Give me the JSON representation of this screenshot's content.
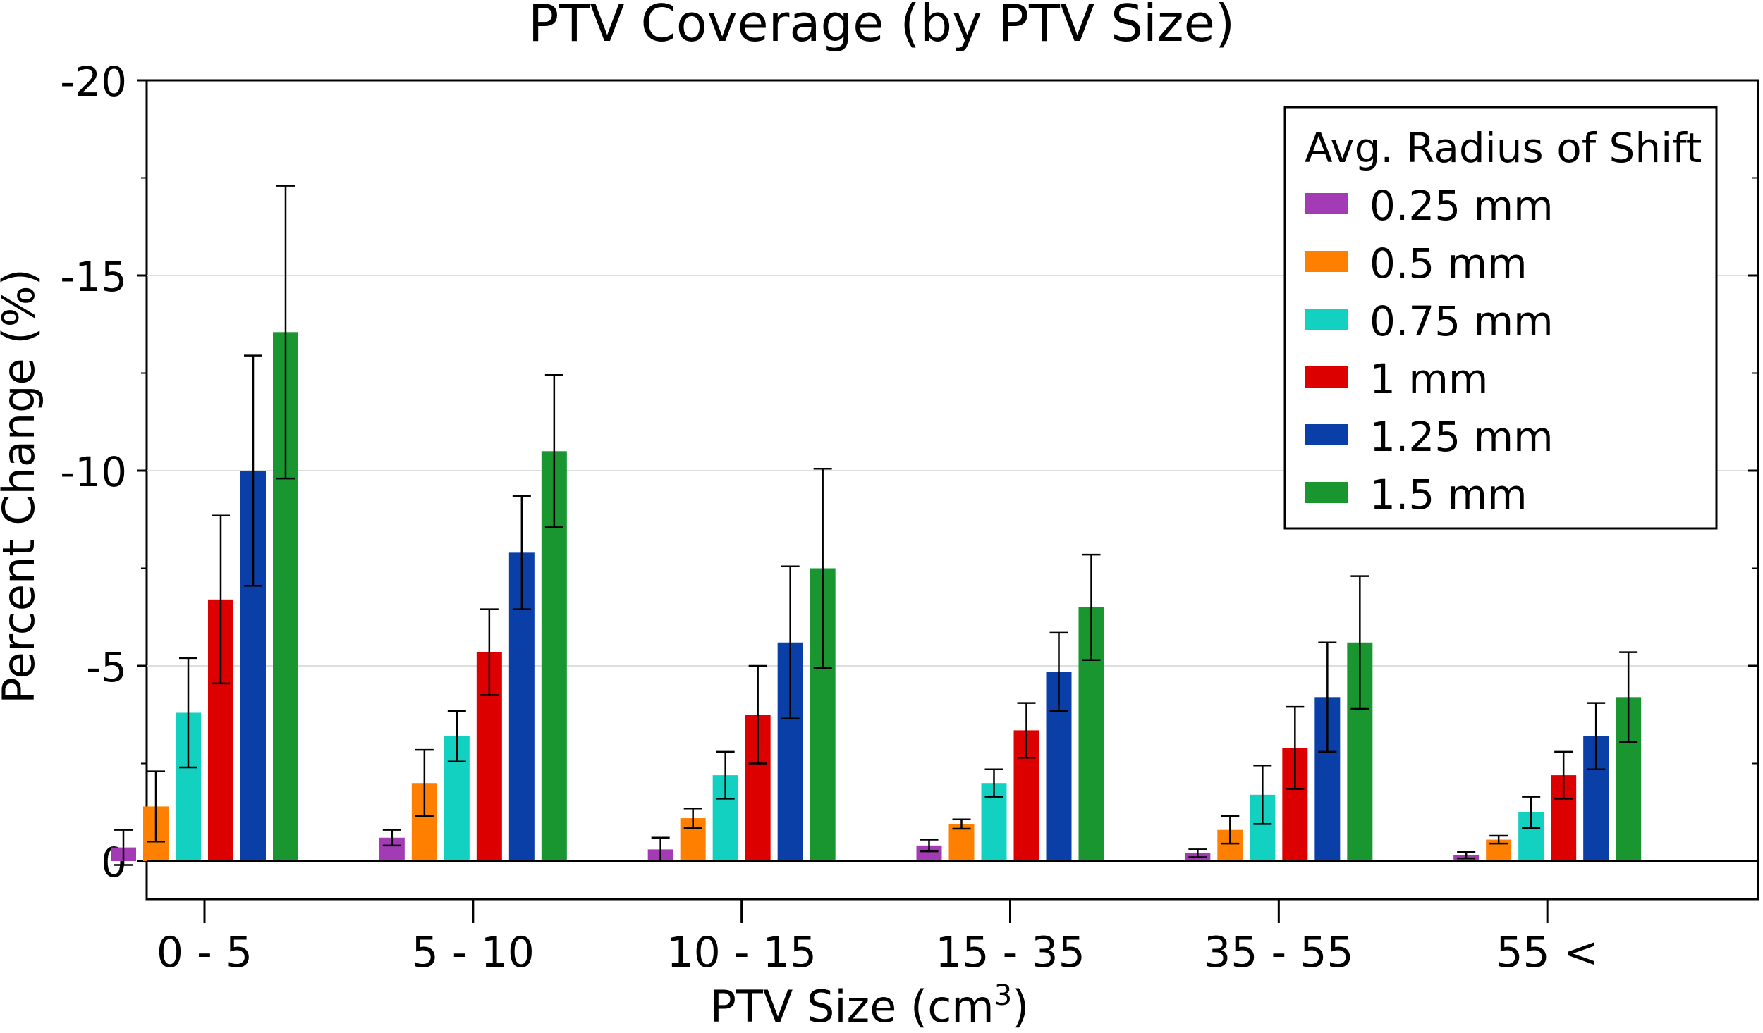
{
  "chart_data": {
    "type": "bar",
    "title": "PTV Coverage (by PTV Size)",
    "xlabel_main": "PTV Size (cm",
    "xlabel_sup": "3",
    "xlabel_close": ")",
    "ylabel": "Percent Change (%)",
    "ylim": [
      0,
      -20
    ],
    "yticks": [
      -20,
      -15,
      -10,
      -5,
      0
    ],
    "ytick_labels": [
      "-20",
      "-15",
      "-10",
      "-5",
      "0"
    ],
    "categories": [
      "0 - 5",
      "5 - 10",
      "10 - 15",
      "15 - 35",
      "35 - 55",
      "55 <"
    ],
    "legend_title": "Avg. Radius of Shift",
    "legend_position": "top-right",
    "grid": "horizontal",
    "series": [
      {
        "name": "0.25 mm",
        "color": "#a33bb5",
        "values": [
          -0.35,
          -0.6,
          -0.3,
          -0.4,
          -0.2,
          -0.15
        ],
        "errors": [
          0.45,
          0.2,
          0.3,
          0.15,
          0.1,
          0.08
        ]
      },
      {
        "name": "0.5 mm",
        "color": "#ff8000",
        "values": [
          -1.4,
          -2.0,
          -1.1,
          -0.95,
          -0.8,
          -0.55
        ],
        "errors": [
          0.9,
          0.85,
          0.25,
          0.12,
          0.35,
          0.1
        ]
      },
      {
        "name": "0.75 mm",
        "color": "#12d1c0",
        "values": [
          -3.8,
          -3.2,
          -2.2,
          -2.0,
          -1.7,
          -1.25
        ],
        "errors": [
          1.4,
          0.65,
          0.6,
          0.35,
          0.75,
          0.4
        ]
      },
      {
        "name": "1 mm",
        "color": "#dd0000",
        "values": [
          -6.7,
          -5.35,
          -3.75,
          -3.35,
          -2.9,
          -2.2
        ],
        "errors": [
          2.15,
          1.1,
          1.25,
          0.7,
          1.05,
          0.6
        ]
      },
      {
        "name": "1.25 mm",
        "color": "#0a3fa8",
        "values": [
          -10.0,
          -7.9,
          -5.6,
          -4.85,
          -4.2,
          -3.2
        ],
        "errors": [
          2.95,
          1.45,
          1.95,
          1.0,
          1.4,
          0.85
        ]
      },
      {
        "name": "1.5 mm",
        "color": "#1a9630",
        "values": [
          -13.55,
          -10.5,
          -7.5,
          -6.5,
          -5.6,
          -4.2
        ],
        "errors": [
          3.75,
          1.95,
          2.55,
          1.35,
          1.7,
          1.15
        ]
      }
    ]
  }
}
